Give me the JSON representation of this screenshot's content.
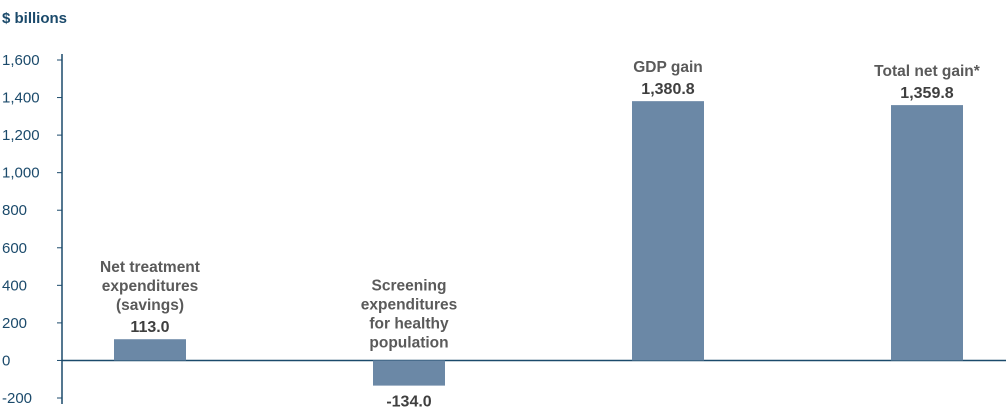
{
  "chart_data": {
    "type": "bar",
    "unit_label": "$ billions",
    "categories": [
      [
        "Net treatment",
        "expenditures",
        "(savings)"
      ],
      [
        "Screening",
        "expenditures",
        "for healthy",
        "population"
      ],
      [
        "GDP gain"
      ],
      [
        "Total net gain*"
      ]
    ],
    "values": [
      113.0,
      -134.0,
      1380.8,
      1359.8
    ],
    "value_labels": [
      "113.0",
      "-134.0",
      "1,380.8",
      "1,359.8"
    ],
    "yticks": [
      -200,
      0,
      200,
      400,
      600,
      800,
      1000,
      1200,
      1400,
      1600
    ],
    "ytick_labels": [
      "-200",
      "0",
      "200",
      "400",
      "600",
      "800",
      "1,000",
      "1,200",
      "1,400",
      "1,600"
    ],
    "ylim": [
      -200,
      1600
    ],
    "grid": false,
    "legend": "none"
  },
  "colors": {
    "bar": "#6b88a6",
    "axis": "#1b4a6b",
    "label": "#5a5a5a",
    "value": "#3f3f3f"
  }
}
